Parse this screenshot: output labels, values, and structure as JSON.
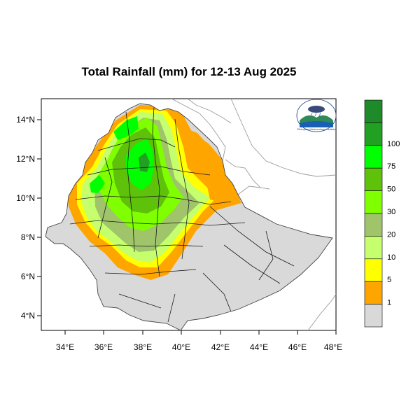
{
  "title": "Total Rainfall (mm) for 12-13 Aug 2025",
  "axes": {
    "lon_ticks": [
      "34°E",
      "36°E",
      "38°E",
      "40°E",
      "42°E",
      "44°E",
      "46°E",
      "48°E"
    ],
    "lat_ticks": [
      "14°N",
      "12°N",
      "10°N",
      "8°N",
      "6°N",
      "4°N"
    ]
  },
  "legend": {
    "classes": [
      {
        "label": "",
        "color": "#1f8a2a"
      },
      {
        "label": "100",
        "color": "#21a021"
      },
      {
        "label": "75",
        "color": "#00ff00"
      },
      {
        "label": "50",
        "color": "#5ec10a"
      },
      {
        "label": "30",
        "color": "#7fff00"
      },
      {
        "label": "20",
        "color": "#9fc46a"
      },
      {
        "label": "10",
        "color": "#c5ff6e"
      },
      {
        "label": "5",
        "color": "#ffff00"
      },
      {
        "label": "1",
        "color": "#ffa500"
      },
      {
        "label": "",
        "color": "#d9d9d9"
      }
    ]
  },
  "logo": {
    "caption": "Ethiopian Meteorology Institute"
  },
  "colors": {
    "no_rain": "#d9d9d9",
    "frame": "#000000",
    "neighbor_border": "#9a9a9a"
  }
}
